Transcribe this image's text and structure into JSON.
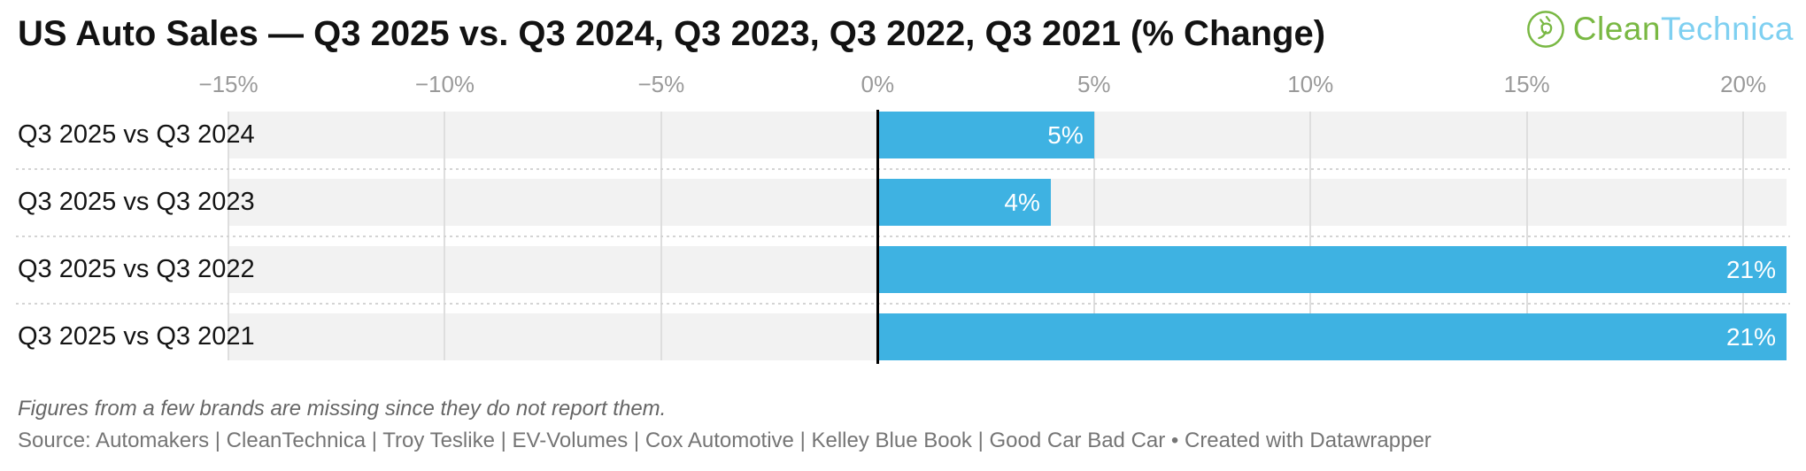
{
  "header": {
    "logo": {
      "icon": "cleantechnica-plug-leaf-icon",
      "text_green": "Clean",
      "text_blue": "Technica",
      "color_green": "#79b843",
      "color_blue": "#7fd0f1"
    }
  },
  "chart_data": {
    "type": "bar",
    "orientation": "horizontal",
    "title": "US Auto Sales — Q3 2025 vs. Q3 2024, Q3 2023, Q3 2022, Q3 2021 (% Change)",
    "categories": [
      "Q3 2025 vs Q3 2024",
      "Q3 2025 vs Q3 2023",
      "Q3 2025 vs Q3 2022",
      "Q3 2025 vs Q3 2021"
    ],
    "values": [
      5,
      4,
      21,
      21
    ],
    "value_labels": [
      "5%",
      "4%",
      "21%",
      "21%"
    ],
    "xlabel": "",
    "ylabel": "",
    "xlim": [
      -15,
      21
    ],
    "x_ticks": [
      -15,
      -10,
      -5,
      0,
      5,
      10,
      15,
      20
    ],
    "x_tick_labels": [
      "−15%",
      "−10%",
      "−5%",
      "0%",
      "5%",
      "10%",
      "15%",
      "20%"
    ],
    "grid": true,
    "legend": "none",
    "bar_color": "#3eb2e2",
    "row_band_color": "#f2f2f2",
    "gridline_color": "#dedede",
    "zero_line_color": "#000000",
    "tick_label_color": "#9a9a9a"
  },
  "footer": {
    "note": "Figures from a few brands are missing since they do not report them.",
    "source": "Source: Automakers | CleanTechnica | Troy Teslike | EV-Volumes | Cox Automotive | Kelley Blue Book | Good Car Bad Car • Created with Datawrapper"
  }
}
